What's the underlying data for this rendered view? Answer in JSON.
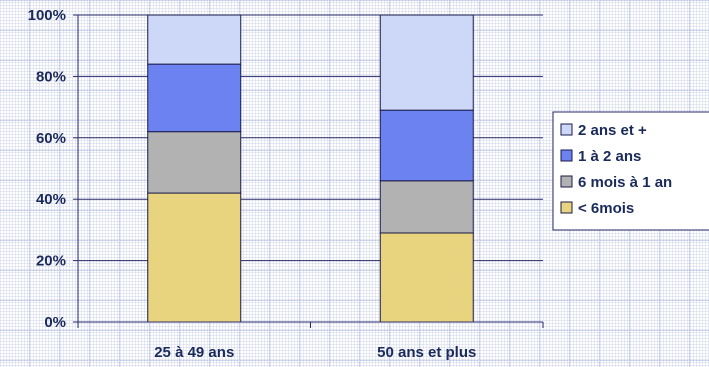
{
  "chart_data": {
    "type": "bar",
    "stacked": true,
    "normalized": true,
    "categories": [
      "25 à 49 ans",
      "50 ans et plus"
    ],
    "series": [
      {
        "name": "< 6mois",
        "values": [
          42,
          29
        ],
        "color": "#e8d47e"
      },
      {
        "name": "6 mois à 1 an",
        "values": [
          20,
          17
        ],
        "color": "#b2b2b2"
      },
      {
        "name": "1 à 2 ans",
        "values": [
          22,
          23
        ],
        "color": "#6c82f0"
      },
      {
        "name": "2 ans et +",
        "values": [
          16,
          31
        ],
        "color": "#cdd8f8"
      }
    ],
    "ylim": [
      0,
      100
    ],
    "yticks": [
      "0%",
      "20%",
      "40%",
      "60%",
      "80%",
      "100%"
    ],
    "grid": true,
    "legend_position": "right",
    "legend_order": [
      "2 ans et +",
      "1 à 2 ans",
      "6 mois à 1 an",
      "< 6mois"
    ]
  }
}
